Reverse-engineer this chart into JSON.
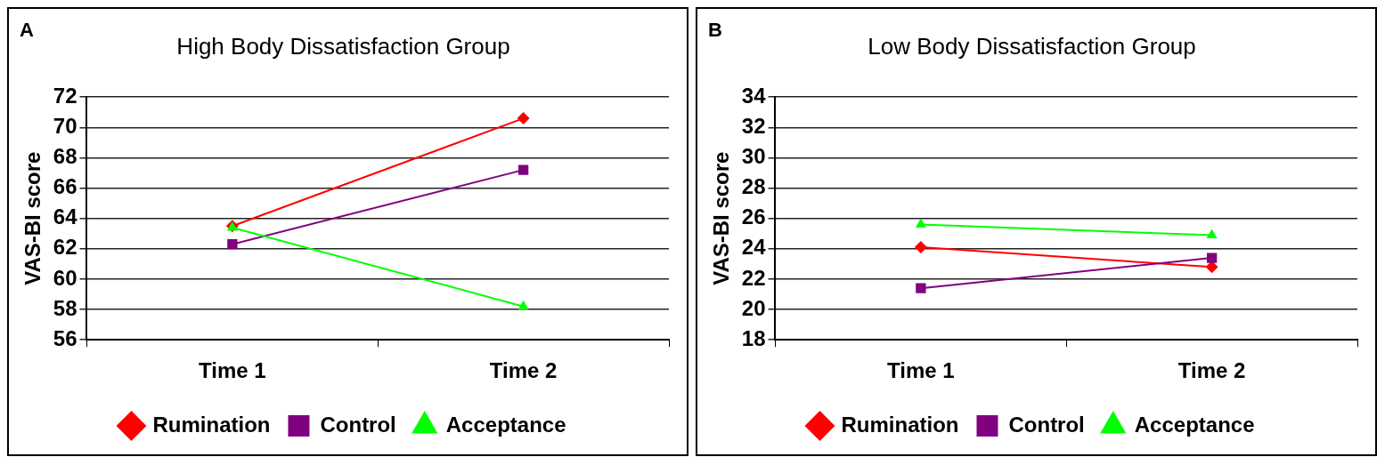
{
  "chart_data": [
    {
      "type": "line",
      "title": "High Body Dissatisfaction Group",
      "ylabel": "VAS-BI score",
      "annotations": [
        "A"
      ],
      "categories": [
        "Time 1",
        "Time 2"
      ],
      "series": [
        {
          "name": "Rumination",
          "color": "#ff0000",
          "marker": "diamond",
          "values": [
            63.5,
            70.6
          ]
        },
        {
          "name": "Control",
          "color": "#800080",
          "marker": "square",
          "values": [
            62.3,
            67.2
          ]
        },
        {
          "name": "Acceptance",
          "color": "#00ff00",
          "marker": "triangle",
          "values": [
            63.4,
            58.2
          ]
        }
      ],
      "ylim": [
        56,
        72
      ],
      "yticks": [
        56,
        58,
        60,
        62,
        64,
        66,
        68,
        70,
        72
      ],
      "grid": "y",
      "legend": "bottom"
    },
    {
      "type": "line",
      "title": "Low Body Dissatisfaction Group",
      "ylabel": "VAS-BI score",
      "annotations": [
        "B"
      ],
      "categories": [
        "Time 1",
        "Time 2"
      ],
      "series": [
        {
          "name": "Rumination",
          "color": "#ff0000",
          "marker": "diamond",
          "values": [
            24.1,
            22.8
          ]
        },
        {
          "name": "Control",
          "color": "#800080",
          "marker": "square",
          "values": [
            21.4,
            23.4
          ]
        },
        {
          "name": "Acceptance",
          "color": "#00ff00",
          "marker": "triangle",
          "values": [
            25.6,
            24.9
          ]
        }
      ],
      "ylim": [
        18,
        34
      ],
      "yticks": [
        18,
        20,
        22,
        24,
        26,
        28,
        30,
        32,
        34
      ],
      "grid": "y",
      "legend": "bottom"
    }
  ]
}
